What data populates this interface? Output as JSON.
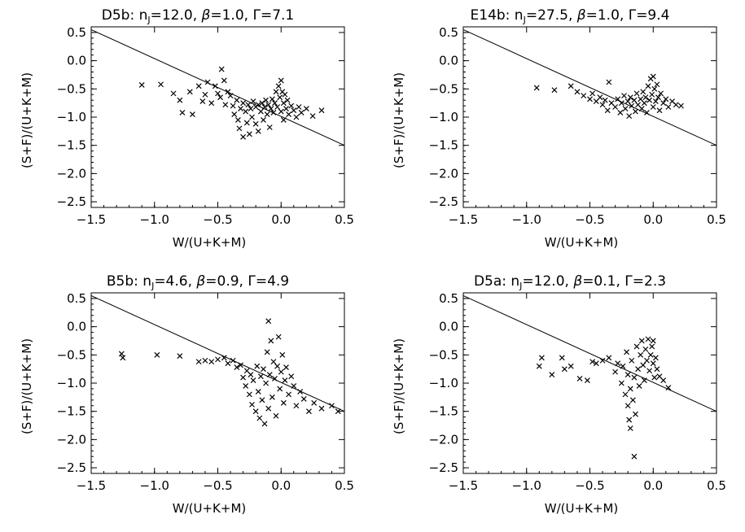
{
  "chart_data": [
    {
      "type": "scatter",
      "title": "D5b: n_J=12.0, β=1.0, Γ=7.1",
      "title_parts": {
        "prefix": "D5b: n",
        "sub": "J",
        "rest": "=12.0, ",
        "beta": "β",
        "beta_val": "=1.0, ",
        "gamma": "Γ",
        "gamma_val": "=7.1"
      },
      "xlabel": "W/(U+K+M)",
      "ylabel": "(S+F)/(U+K+M)",
      "xlim": [
        -1.5,
        0.5
      ],
      "ylim": [
        -2.6,
        0.6
      ],
      "xticks": [
        -1.5,
        -1.0,
        -0.5,
        0.0,
        0.5
      ],
      "yticks": [
        0.5,
        0.0,
        -0.5,
        -1.0,
        -1.5,
        -2.0,
        -2.5
      ],
      "line": {
        "x": [
          -1.5,
          0.5
        ],
        "y": [
          0.55,
          -1.5
        ]
      },
      "marker": "×",
      "points": [
        {
          "x": -1.1,
          "y": -0.43
        },
        {
          "x": -0.95,
          "y": -0.42
        },
        {
          "x": -0.85,
          "y": -0.58
        },
        {
          "x": -0.8,
          "y": -0.7
        },
        {
          "x": -0.78,
          "y": -0.92
        },
        {
          "x": -0.72,
          "y": -0.55
        },
        {
          "x": -0.7,
          "y": -0.95
        },
        {
          "x": -0.65,
          "y": -0.45
        },
        {
          "x": -0.62,
          "y": -0.72
        },
        {
          "x": -0.6,
          "y": -0.6
        },
        {
          "x": -0.58,
          "y": -0.38
        },
        {
          "x": -0.55,
          "y": -0.75
        },
        {
          "x": -0.52,
          "y": -0.45
        },
        {
          "x": -0.5,
          "y": -0.58
        },
        {
          "x": -0.48,
          "y": -0.65
        },
        {
          "x": -0.47,
          "y": -0.15
        },
        {
          "x": -0.45,
          "y": -0.35
        },
        {
          "x": -0.44,
          "y": -0.78
        },
        {
          "x": -0.42,
          "y": -0.55
        },
        {
          "x": -0.4,
          "y": -0.62
        },
        {
          "x": -0.38,
          "y": -0.8
        },
        {
          "x": -0.37,
          "y": -0.95
        },
        {
          "x": -0.35,
          "y": -0.7
        },
        {
          "x": -0.34,
          "y": -1.05
        },
        {
          "x": -0.33,
          "y": -1.2
        },
        {
          "x": -0.32,
          "y": -0.85
        },
        {
          "x": -0.3,
          "y": -0.75
        },
        {
          "x": -0.3,
          "y": -1.35
        },
        {
          "x": -0.28,
          "y": -0.9
        },
        {
          "x": -0.27,
          "y": -1.1
        },
        {
          "x": -0.26,
          "y": -0.78
        },
        {
          "x": -0.25,
          "y": -1.3
        },
        {
          "x": -0.24,
          "y": -0.85
        },
        {
          "x": -0.23,
          "y": -1.0
        },
        {
          "x": -0.22,
          "y": -0.72
        },
        {
          "x": -0.2,
          "y": -1.12
        },
        {
          "x": -0.2,
          "y": -0.82
        },
        {
          "x": -0.18,
          "y": -0.78
        },
        {
          "x": -0.18,
          "y": -1.25
        },
        {
          "x": -0.16,
          "y": -0.9
        },
        {
          "x": -0.15,
          "y": -0.75
        },
        {
          "x": -0.14,
          "y": -1.05
        },
        {
          "x": -0.13,
          "y": -0.82
        },
        {
          "x": -0.12,
          "y": -0.7
        },
        {
          "x": -0.11,
          "y": -0.95
        },
        {
          "x": -0.1,
          "y": -0.78
        },
        {
          "x": -0.09,
          "y": -1.18
        },
        {
          "x": -0.08,
          "y": -0.85
        },
        {
          "x": -0.07,
          "y": -0.68
        },
        {
          "x": -0.06,
          "y": -0.92
        },
        {
          "x": -0.05,
          "y": -0.75
        },
        {
          "x": -0.04,
          "y": -0.55
        },
        {
          "x": -0.03,
          "y": -0.82
        },
        {
          "x": -0.02,
          "y": -0.45
        },
        {
          "x": -0.01,
          "y": -0.65
        },
        {
          "x": 0.0,
          "y": -0.35
        },
        {
          "x": 0.0,
          "y": -0.9
        },
        {
          "x": 0.01,
          "y": -0.55
        },
        {
          "x": 0.02,
          "y": -0.75
        },
        {
          "x": 0.02,
          "y": -1.05
        },
        {
          "x": 0.03,
          "y": -0.6
        },
        {
          "x": 0.04,
          "y": -0.85
        },
        {
          "x": 0.05,
          "y": -0.7
        },
        {
          "x": 0.06,
          "y": -0.95
        },
        {
          "x": 0.08,
          "y": -0.8
        },
        {
          "x": 0.1,
          "y": -0.88
        },
        {
          "x": 0.12,
          "y": -1.0
        },
        {
          "x": 0.14,
          "y": -0.82
        },
        {
          "x": 0.16,
          "y": -0.92
        },
        {
          "x": 0.2,
          "y": -0.85
        },
        {
          "x": 0.25,
          "y": -0.98
        },
        {
          "x": 0.32,
          "y": -0.88
        }
      ]
    },
    {
      "type": "scatter",
      "title": "E14b: n_J=27.5, β=1.0, Γ=9.4",
      "title_parts": {
        "prefix": "E14b: n",
        "sub": "J",
        "rest": "=27.5, ",
        "beta": "β",
        "beta_val": "=1.0, ",
        "gamma": "Γ",
        "gamma_val": "=9.4"
      },
      "xlabel": "W/(U+K+M)",
      "ylabel": "(S+F)/(U+K+M)",
      "xlim": [
        -1.5,
        0.5
      ],
      "ylim": [
        -2.6,
        0.6
      ],
      "xticks": [
        -1.5,
        -1.0,
        -0.5,
        0.0,
        0.5
      ],
      "yticks": [
        0.5,
        0.0,
        -0.5,
        -1.0,
        -1.5,
        -2.0,
        -2.5
      ],
      "line": {
        "x": [
          -1.5,
          0.5
        ],
        "y": [
          0.55,
          -1.5
        ]
      },
      "marker": "×",
      "points": [
        {
          "x": -0.92,
          "y": -0.48
        },
        {
          "x": -0.78,
          "y": -0.52
        },
        {
          "x": -0.65,
          "y": -0.45
        },
        {
          "x": -0.6,
          "y": -0.55
        },
        {
          "x": -0.55,
          "y": -0.62
        },
        {
          "x": -0.5,
          "y": -0.68
        },
        {
          "x": -0.48,
          "y": -0.58
        },
        {
          "x": -0.45,
          "y": -0.72
        },
        {
          "x": -0.42,
          "y": -0.65
        },
        {
          "x": -0.4,
          "y": -0.78
        },
        {
          "x": -0.38,
          "y": -0.7
        },
        {
          "x": -0.36,
          "y": -0.88
        },
        {
          "x": -0.35,
          "y": -0.38
        },
        {
          "x": -0.33,
          "y": -0.75
        },
        {
          "x": -0.3,
          "y": -0.82
        },
        {
          "x": -0.28,
          "y": -0.68
        },
        {
          "x": -0.26,
          "y": -0.92
        },
        {
          "x": -0.25,
          "y": -0.75
        },
        {
          "x": -0.23,
          "y": -0.62
        },
        {
          "x": -0.22,
          "y": -0.85
        },
        {
          "x": -0.2,
          "y": -0.72
        },
        {
          "x": -0.19,
          "y": -0.98
        },
        {
          "x": -0.18,
          "y": -0.65
        },
        {
          "x": -0.17,
          "y": -0.8
        },
        {
          "x": -0.15,
          "y": -0.7
        },
        {
          "x": -0.14,
          "y": -0.9
        },
        {
          "x": -0.13,
          "y": -0.58
        },
        {
          "x": -0.12,
          "y": -0.78
        },
        {
          "x": -0.1,
          "y": -0.68
        },
        {
          "x": -0.09,
          "y": -0.85
        },
        {
          "x": -0.08,
          "y": -0.55
        },
        {
          "x": -0.07,
          "y": -0.75
        },
        {
          "x": -0.06,
          "y": -0.65
        },
        {
          "x": -0.05,
          "y": -0.92
        },
        {
          "x": -0.04,
          "y": -0.45
        },
        {
          "x": -0.03,
          "y": -0.7
        },
        {
          "x": -0.02,
          "y": -0.32
        },
        {
          "x": -0.01,
          "y": -0.6
        },
        {
          "x": 0.0,
          "y": -0.28
        },
        {
          "x": 0.0,
          "y": -0.82
        },
        {
          "x": 0.01,
          "y": -0.5
        },
        {
          "x": 0.02,
          "y": -0.72
        },
        {
          "x": 0.03,
          "y": -0.42
        },
        {
          "x": 0.04,
          "y": -0.65
        },
        {
          "x": 0.05,
          "y": -0.88
        },
        {
          "x": 0.06,
          "y": -0.58
        },
        {
          "x": 0.08,
          "y": -0.75
        },
        {
          "x": 0.1,
          "y": -0.68
        },
        {
          "x": 0.12,
          "y": -0.82
        },
        {
          "x": 0.15,
          "y": -0.72
        },
        {
          "x": 0.18,
          "y": -0.78
        },
        {
          "x": 0.22,
          "y": -0.8
        }
      ]
    },
    {
      "type": "scatter",
      "title": "B5b: n_J=4.6, β=0.9, Γ=4.9",
      "title_parts": {
        "prefix": "B5b: n",
        "sub": "J",
        "rest": "=4.6, ",
        "beta": "β",
        "beta_val": "=0.9, ",
        "gamma": "Γ",
        "gamma_val": "=4.9"
      },
      "xlabel": "W/(U+K+M)",
      "ylabel": "(S+F)/(U+K+M)",
      "xlim": [
        -1.5,
        0.5
      ],
      "ylim": [
        -2.6,
        0.6
      ],
      "xticks": [
        -1.5,
        -1.0,
        -0.5,
        0.0,
        0.5
      ],
      "yticks": [
        0.5,
        0.0,
        -0.5,
        -1.0,
        -1.5,
        -2.0,
        -2.5
      ],
      "line": {
        "x": [
          -1.5,
          0.5
        ],
        "y": [
          0.55,
          -1.5
        ]
      },
      "marker": "×",
      "points": [
        {
          "x": -1.26,
          "y": -0.48
        },
        {
          "x": -1.25,
          "y": -0.55
        },
        {
          "x": -0.98,
          "y": -0.5
        },
        {
          "x": -0.8,
          "y": -0.52
        },
        {
          "x": -0.65,
          "y": -0.62
        },
        {
          "x": -0.6,
          "y": -0.6
        },
        {
          "x": -0.55,
          "y": -0.62
        },
        {
          "x": -0.5,
          "y": -0.58
        },
        {
          "x": -0.45,
          "y": -0.55
        },
        {
          "x": -0.42,
          "y": -0.65
        },
        {
          "x": -0.38,
          "y": -0.6
        },
        {
          "x": -0.35,
          "y": -0.72
        },
        {
          "x": -0.32,
          "y": -0.68
        },
        {
          "x": -0.3,
          "y": -0.9
        },
        {
          "x": -0.28,
          "y": -1.05
        },
        {
          "x": -0.27,
          "y": -0.78
        },
        {
          "x": -0.25,
          "y": -1.2
        },
        {
          "x": -0.24,
          "y": -0.85
        },
        {
          "x": -0.23,
          "y": -1.38
        },
        {
          "x": -0.22,
          "y": -0.95
        },
        {
          "x": -0.2,
          "y": -1.5
        },
        {
          "x": -0.19,
          "y": -0.7
        },
        {
          "x": -0.18,
          "y": -1.15
        },
        {
          "x": -0.17,
          "y": -1.62
        },
        {
          "x": -0.16,
          "y": -0.88
        },
        {
          "x": -0.15,
          "y": -1.3
        },
        {
          "x": -0.14,
          "y": -0.75
        },
        {
          "x": -0.13,
          "y": -1.72
        },
        {
          "x": -0.12,
          "y": -1.0
        },
        {
          "x": -0.11,
          "y": -0.45
        },
        {
          "x": -0.1,
          "y": -1.45
        },
        {
          "x": -0.1,
          "y": 0.1
        },
        {
          "x": -0.09,
          "y": -0.85
        },
        {
          "x": -0.08,
          "y": -0.25
        },
        {
          "x": -0.07,
          "y": -1.25
        },
        {
          "x": -0.06,
          "y": -0.62
        },
        {
          "x": -0.05,
          "y": -0.92
        },
        {
          "x": -0.04,
          "y": -1.58
        },
        {
          "x": -0.03,
          "y": -0.7
        },
        {
          "x": -0.02,
          "y": -0.18
        },
        {
          "x": -0.01,
          "y": -1.1
        },
        {
          "x": 0.0,
          "y": -0.8
        },
        {
          "x": 0.01,
          "y": -0.5
        },
        {
          "x": 0.02,
          "y": -1.35
        },
        {
          "x": 0.03,
          "y": -0.95
        },
        {
          "x": 0.04,
          "y": -0.72
        },
        {
          "x": 0.06,
          "y": -1.2
        },
        {
          "x": 0.08,
          "y": -0.88
        },
        {
          "x": 0.1,
          "y": -1.05
        },
        {
          "x": 0.12,
          "y": -1.4
        },
        {
          "x": 0.15,
          "y": -1.15
        },
        {
          "x": 0.18,
          "y": -1.28
        },
        {
          "x": 0.22,
          "y": -1.5
        },
        {
          "x": 0.26,
          "y": -1.35
        },
        {
          "x": 0.32,
          "y": -1.45
        },
        {
          "x": 0.4,
          "y": -1.4
        },
        {
          "x": 0.45,
          "y": -1.5
        }
      ]
    },
    {
      "type": "scatter",
      "title": "D5a: n_J=12.0, β=0.1, Γ=2.3",
      "title_parts": {
        "prefix": "D5a: n",
        "sub": "J",
        "rest": "=12.0, ",
        "beta": "β",
        "beta_val": "=0.1, ",
        "gamma": "Γ",
        "gamma_val": "=2.3"
      },
      "xlabel": "W/(U+K+M)",
      "ylabel": "(S+F)/(U+K+M)",
      "xlim": [
        -1.5,
        0.5
      ],
      "ylim": [
        -2.6,
        0.6
      ],
      "xticks": [
        -1.5,
        -1.0,
        -0.5,
        0.0,
        0.5
      ],
      "yticks": [
        0.5,
        0.0,
        -0.5,
        -1.0,
        -1.5,
        -2.0,
        -2.5
      ],
      "line": {
        "x": [
          -1.5,
          0.5
        ],
        "y": [
          0.55,
          -1.5
        ]
      },
      "marker": "×",
      "points": [
        {
          "x": -0.9,
          "y": -0.7
        },
        {
          "x": -0.88,
          "y": -0.55
        },
        {
          "x": -0.8,
          "y": -0.85
        },
        {
          "x": -0.72,
          "y": -0.55
        },
        {
          "x": -0.7,
          "y": -0.75
        },
        {
          "x": -0.65,
          "y": -0.7
        },
        {
          "x": -0.58,
          "y": -0.92
        },
        {
          "x": -0.52,
          "y": -0.95
        },
        {
          "x": -0.48,
          "y": -0.62
        },
        {
          "x": -0.45,
          "y": -0.65
        },
        {
          "x": -0.4,
          "y": -0.6
        },
        {
          "x": -0.35,
          "y": -0.55
        },
        {
          "x": -0.3,
          "y": -0.8
        },
        {
          "x": -0.28,
          "y": -0.65
        },
        {
          "x": -0.25,
          "y": -1.0
        },
        {
          "x": -0.24,
          "y": -0.7
        },
        {
          "x": -0.22,
          "y": -1.2
        },
        {
          "x": -0.21,
          "y": -0.45
        },
        {
          "x": -0.2,
          "y": -1.4
        },
        {
          "x": -0.2,
          "y": -0.85
        },
        {
          "x": -0.19,
          "y": -1.65
        },
        {
          "x": -0.18,
          "y": -1.1
        },
        {
          "x": -0.18,
          "y": -1.8
        },
        {
          "x": -0.17,
          "y": -0.6
        },
        {
          "x": -0.16,
          "y": -1.3
        },
        {
          "x": -0.15,
          "y": -2.3
        },
        {
          "x": -0.15,
          "y": -0.9
        },
        {
          "x": -0.14,
          "y": -1.55
        },
        {
          "x": -0.13,
          "y": -0.35
        },
        {
          "x": -0.12,
          "y": -0.75
        },
        {
          "x": -0.11,
          "y": -1.05
        },
        {
          "x": -0.1,
          "y": -0.5
        },
        {
          "x": -0.09,
          "y": -0.25
        },
        {
          "x": -0.08,
          "y": -0.68
        },
        {
          "x": -0.07,
          "y": -0.95
        },
        {
          "x": -0.06,
          "y": -0.4
        },
        {
          "x": -0.05,
          "y": -0.6
        },
        {
          "x": -0.04,
          "y": -0.22
        },
        {
          "x": -0.03,
          "y": -0.78
        },
        {
          "x": -0.02,
          "y": -0.5
        },
        {
          "x": -0.01,
          "y": -0.35
        },
        {
          "x": 0.0,
          "y": -0.65
        },
        {
          "x": 0.0,
          "y": -0.25
        },
        {
          "x": 0.01,
          "y": -0.9
        },
        {
          "x": 0.02,
          "y": -0.55
        },
        {
          "x": 0.03,
          "y": -0.75
        },
        {
          "x": 0.05,
          "y": -0.88
        },
        {
          "x": 0.08,
          "y": -0.95
        },
        {
          "x": 0.12,
          "y": -1.08
        }
      ]
    }
  ]
}
